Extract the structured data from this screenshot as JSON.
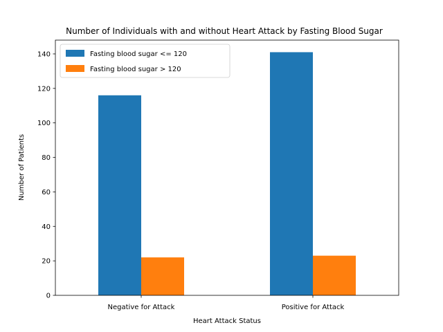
{
  "chart_data": {
    "type": "bar",
    "title": "Number of Individuals with and without Heart Attack by Fasting Blood Sugar",
    "xlabel": "Heart Attack Status",
    "ylabel": "Number of Patients",
    "categories": [
      "Negative for Attack",
      "Positive for Attack"
    ],
    "series": [
      {
        "name": "Fasting blood sugar <= 120",
        "values": [
          116,
          141
        ],
        "color": "#1f77b4"
      },
      {
        "name": "Fasting blood sugar > 120",
        "values": [
          22,
          23
        ],
        "color": "#ff7f0e"
      }
    ],
    "ylim": [
      0,
      148
    ],
    "yticks": [
      0,
      20,
      40,
      60,
      80,
      100,
      120,
      140
    ],
    "grid": false,
    "legend_position": "upper-left"
  }
}
